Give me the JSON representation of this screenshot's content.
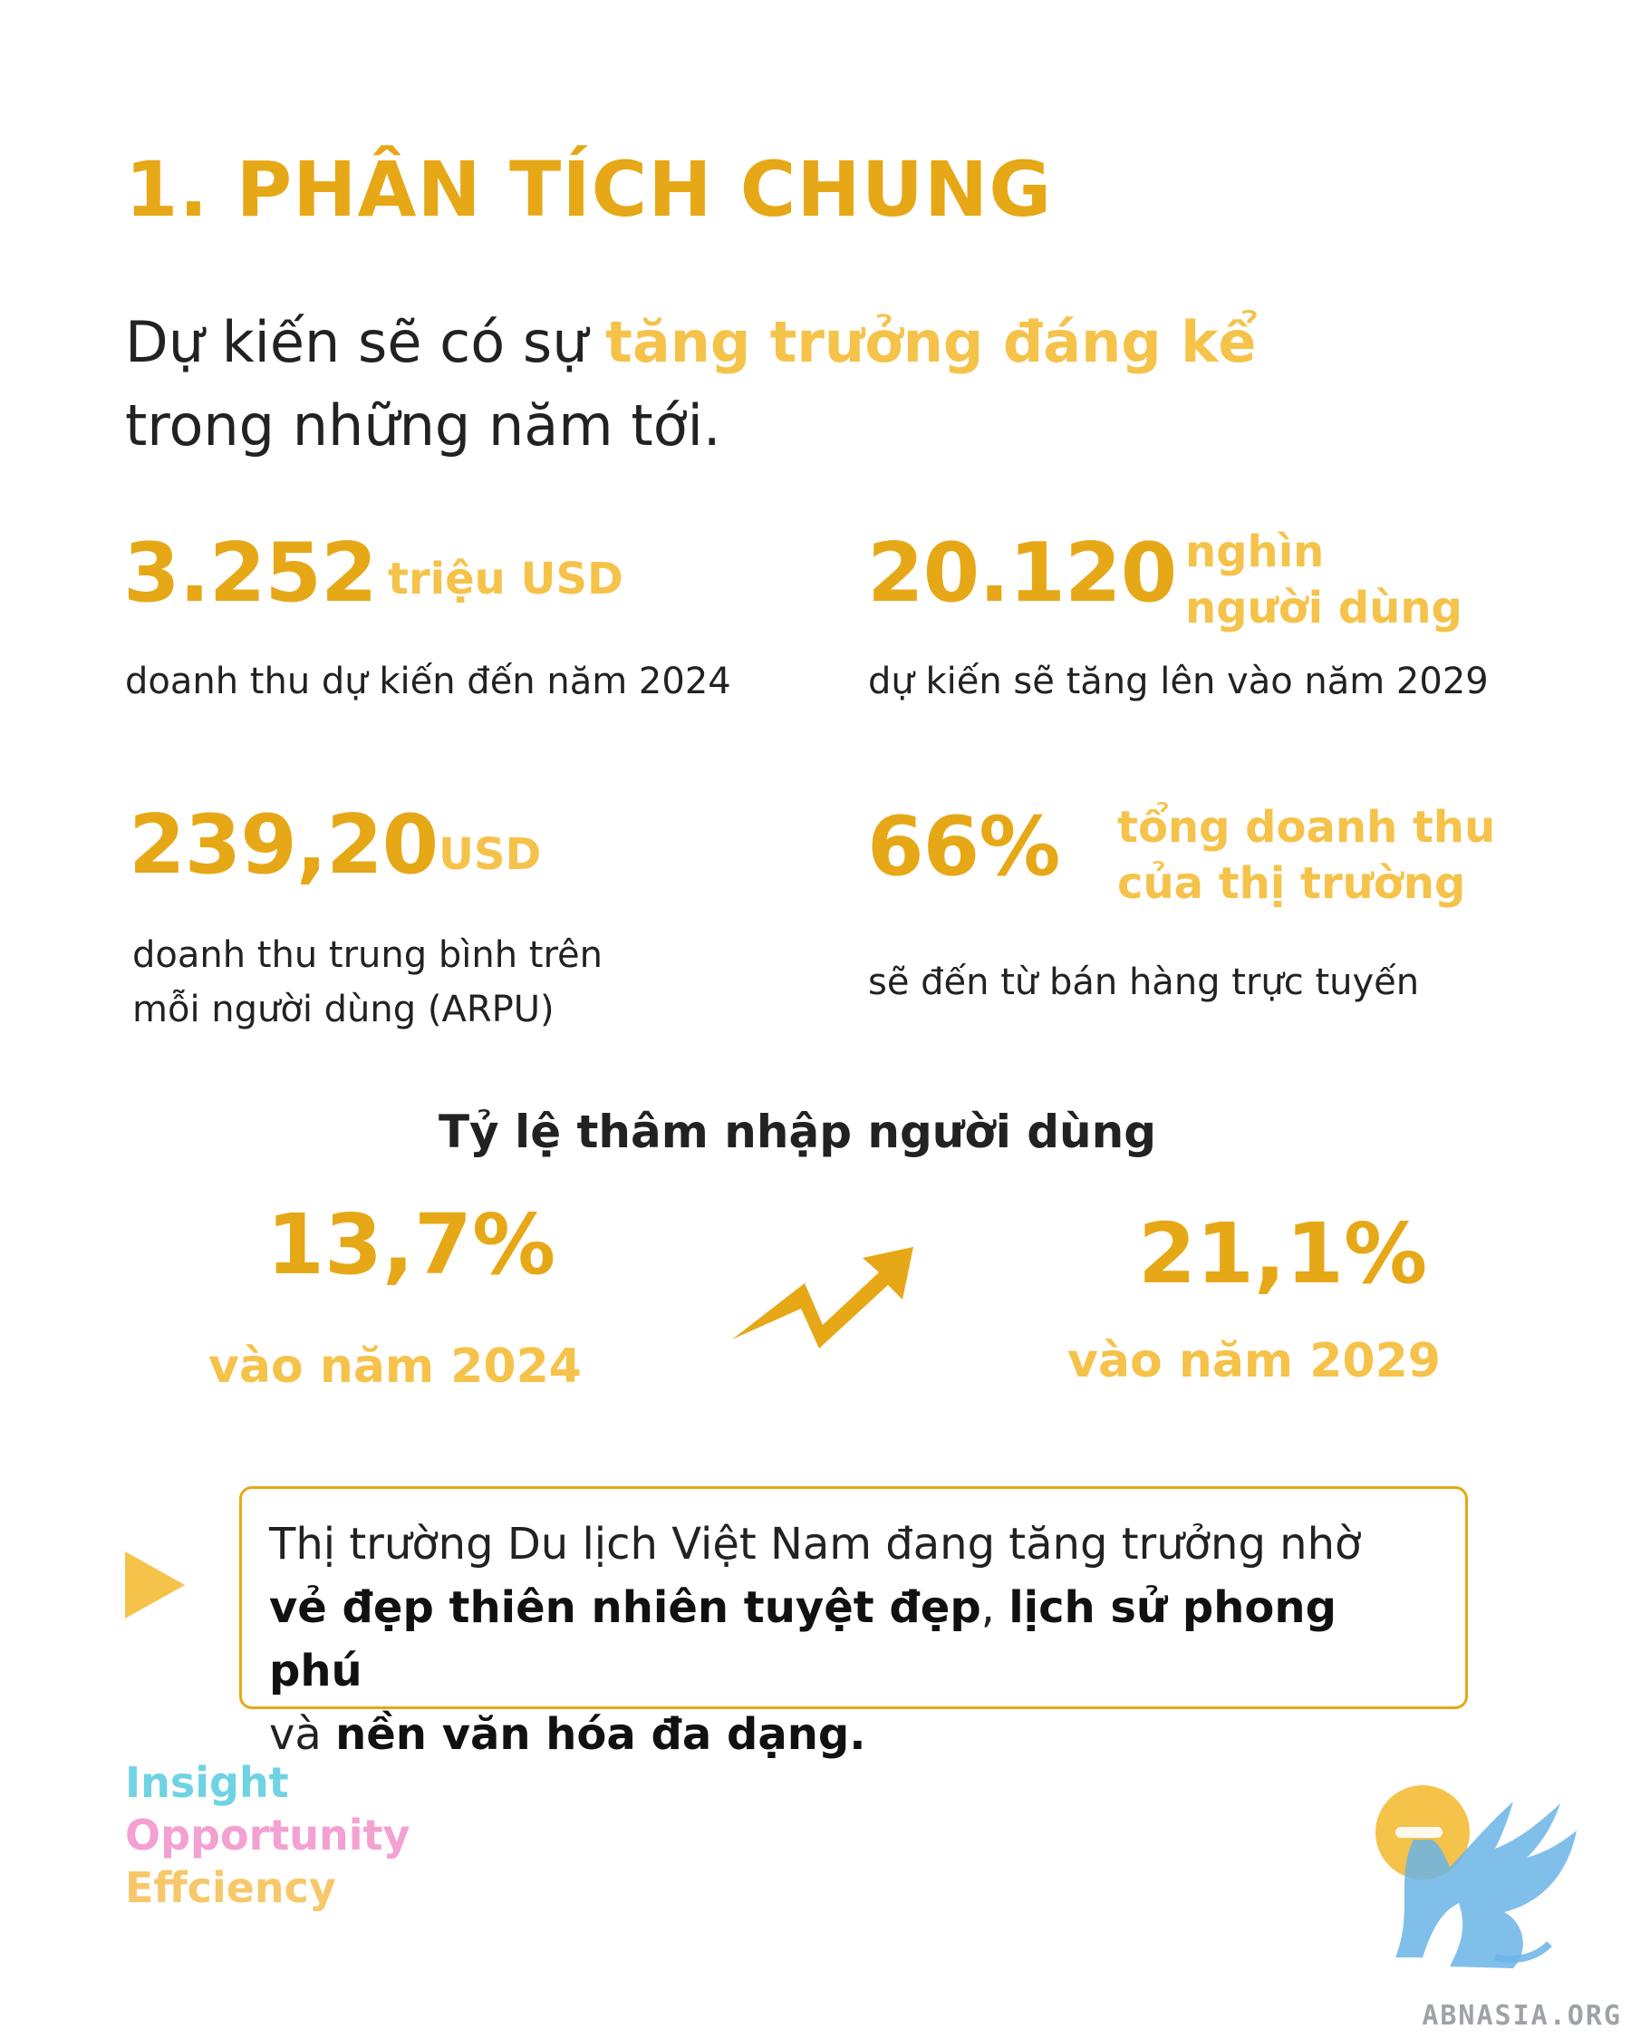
{
  "header": {
    "title": "1. PHÂN TÍCH CHUNG"
  },
  "intro": {
    "part1": "Dự kiến sẽ có sự ",
    "highlight": "tăng trưởng đáng kể",
    "part2": "trong những năm tới."
  },
  "stats": [
    {
      "value": "3.252",
      "unit": "triệu USD",
      "desc": "doanh thu dự kiến đến năm 2024"
    },
    {
      "value": "20.120",
      "unit_line1": "nghìn",
      "unit_line2": "người dùng",
      "desc": "dự kiến sẽ tăng lên vào năm 2029"
    },
    {
      "value": "239,20",
      "unit": "USD",
      "desc_line1": "doanh thu trung bình trên",
      "desc_line2": "mỗi người dùng (ARPU)"
    },
    {
      "value": "66%",
      "unit_line1": "tổng doanh thu",
      "unit_line2": "của thị trường",
      "desc": "sẽ đến từ bán hàng trực tuyến"
    }
  ],
  "penetration": {
    "title": "Tỷ lệ thâm nhập người dùng",
    "from": {
      "value": "13,7%",
      "year": "vào năm 2024"
    },
    "to": {
      "value": "21,1%",
      "year": "vào năm 2029"
    },
    "arrow_icon": "trend-up-arrow-icon"
  },
  "callout": {
    "icon": "play-triangle-icon",
    "text1": "Thị trường Du lịch Việt Nam đang tăng trưởng nhờ",
    "bold1": "vẻ đẹp thiên nhiên tuyệt đẹp",
    "sep": ", ",
    "bold2": "lịch sử phong phú",
    "text2": "và ",
    "bold3": "nền văn hóa đa dạng."
  },
  "taglines": [
    {
      "text": "Insight",
      "color": "#6fd3e3"
    },
    {
      "text": "Opportunity",
      "color": "#f3a0d2"
    },
    {
      "text": "Effciency",
      "color": "#f6c86a"
    }
  ],
  "brand": {
    "logo_icon": "griffin-logo-icon",
    "site": "ABNASIA.ORG"
  },
  "colors": {
    "accent": "#e6a817",
    "accent_light": "#f5c24a",
    "logo_blue": "#6ab4e6"
  }
}
